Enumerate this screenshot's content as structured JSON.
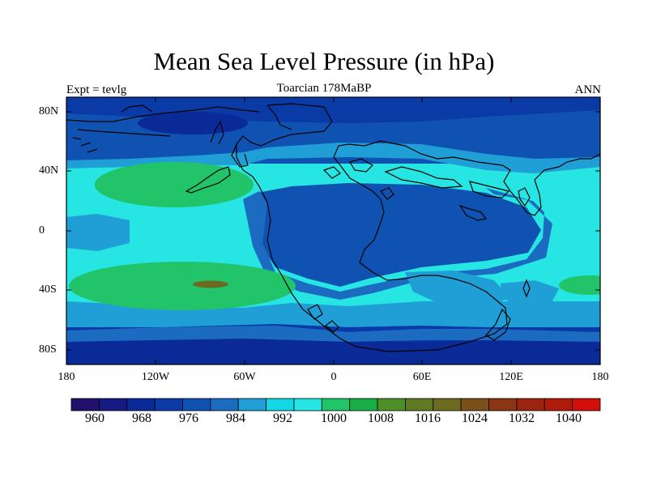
{
  "title": "Mean Sea Level Pressure (in hPa)",
  "subtitle_left": "Expt = tevlg",
  "subtitle_center": "Toarcian 178MaBP",
  "subtitle_right": "ANN",
  "map": {
    "projection": "cylindrical equidistant",
    "lon_range": [
      -180,
      180
    ],
    "lat_range": [
      -90,
      90
    ],
    "y_tick_labels": [
      "80N",
      "40N",
      "0",
      "40S",
      "80S"
    ],
    "x_tick_labels": [
      "180",
      "120W",
      "60W",
      "0",
      "60E",
      "120E",
      "180"
    ]
  },
  "colorbar": {
    "colors": [
      "#22116a",
      "#151b82",
      "#0a2a97",
      "#0a3aa6",
      "#1052b2",
      "#1b6cc0",
      "#1f9fd6",
      "#14d7e6",
      "#26e5e2",
      "#22c46a",
      "#1aae46",
      "#4f8f2a",
      "#5f7a22",
      "#6b6a20",
      "#7a5018",
      "#8a3514",
      "#9a2410",
      "#b01a0a",
      "#d40e08"
    ],
    "labels": [
      "960",
      "968",
      "976",
      "984",
      "992",
      "1000",
      "1008",
      "1016",
      "1024",
      "1032",
      "1040"
    ]
  },
  "fields": {
    "ocean_background": "#26e5e2",
    "low_band": "#1052b2",
    "mid_band": "#1f9fd6",
    "high_zone": "#22c46a",
    "peak_zone": "#6b6a20",
    "coastline": "#000000"
  }
}
